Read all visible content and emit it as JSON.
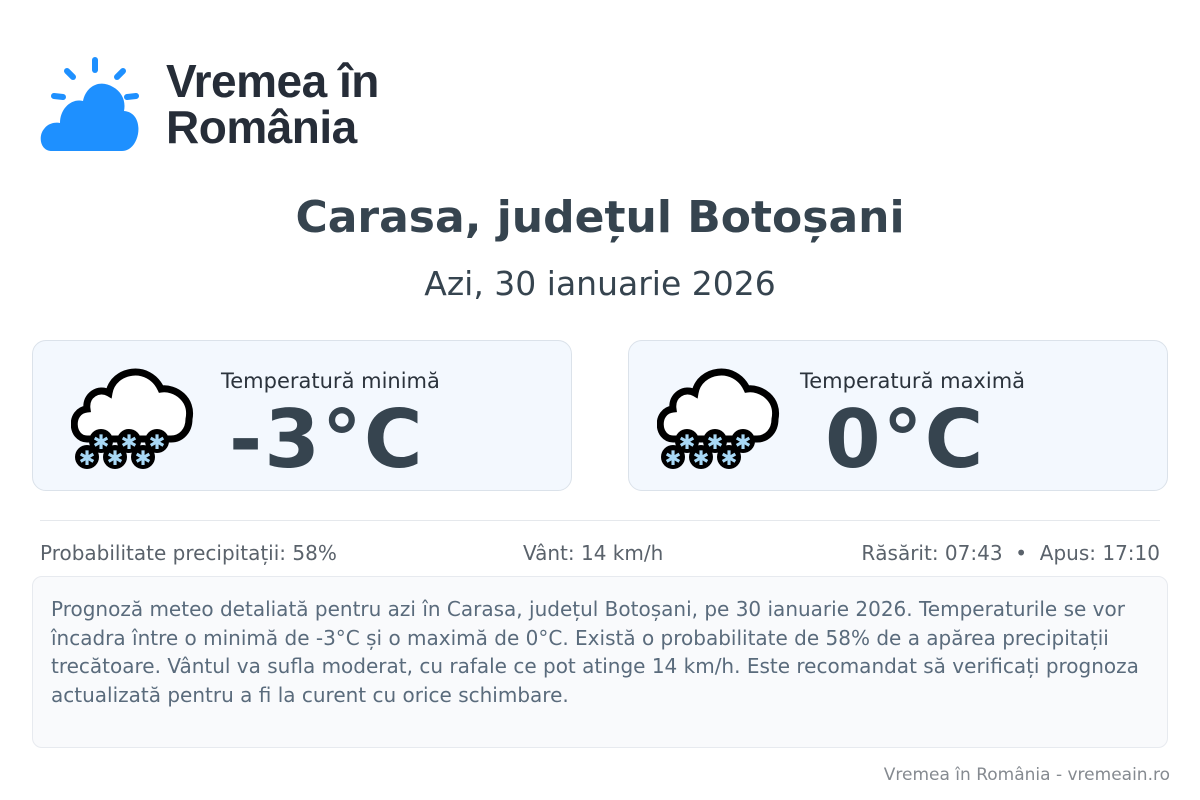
{
  "brand": {
    "name": "Vremea în România",
    "line1": "Vremea în",
    "line2": "România",
    "logo_icon": "sun-cloud-icon",
    "accent": "#1e90ff"
  },
  "header": {
    "title": "Carasa, județul Botoșani",
    "date": "Azi, 30 ianuarie 2026"
  },
  "cards": [
    {
      "label": "Temperatură minimă",
      "value": "-3°C",
      "icon": "snow-cloud-icon"
    },
    {
      "label": "Temperatură maximă",
      "value": "0°C",
      "icon": "snow-cloud-icon"
    }
  ],
  "stats": {
    "precip": "Probabilitate precipitații: 58%",
    "wind": "Vânt: 14 km/h",
    "sun": "Răsărit: 07:43  •  Apus: 17:10"
  },
  "description": "Prognoză meteo detaliată pentru azi în Carasa, județul Botoșani, pe 30 ianuarie 2026. Temperaturile se vor încadra între o minimă de -3°C și o maximă de 0°C. Există o probabilitate de 58% de a apărea precipitații trecătoare. Vântul va sufla moderat, cu rafale ce pot atinge 14 km/h. Este recomandat să verificați prognoza actualizată pentru a fi la curent cu orice schimbare.",
  "footer": "Vremea în România - vremeain.ro"
}
